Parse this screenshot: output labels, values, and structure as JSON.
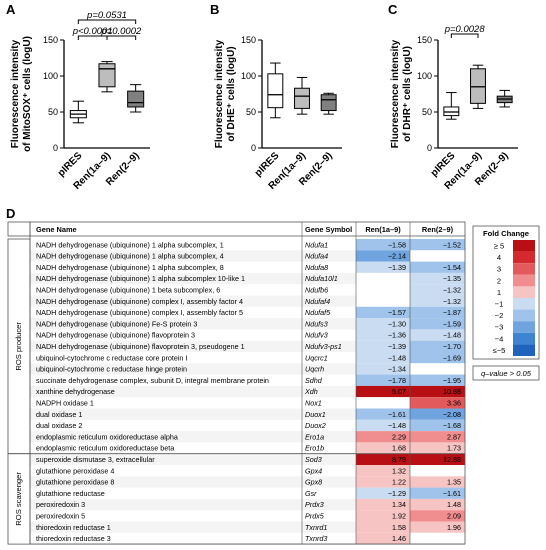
{
  "chart_data": [
    {
      "type": "box",
      "panel": "A",
      "ylabel_lines": [
        "Fluorescence intensity",
        "of MitoSOX⁺ cells (logU)"
      ],
      "ylim": [
        0,
        150
      ],
      "yticks": [
        0,
        50,
        100,
        150
      ],
      "categories": [
        "pIRES",
        "Ren(1a–9)",
        "Ren(2–9)"
      ],
      "boxes": [
        {
          "fill": "#ffffff",
          "whisker_low": 35,
          "q1": 42,
          "median": 47,
          "q3": 52,
          "whisker_high": 65
        },
        {
          "fill": "#bdbdbd",
          "whisker_low": 78,
          "q1": 85,
          "median": 110,
          "q3": 117,
          "whisker_high": 120
        },
        {
          "fill": "#808080",
          "whisker_low": 50,
          "q1": 57,
          "median": 63,
          "q3": 79,
          "whisker_high": 88
        }
      ],
      "annotations": [
        {
          "text": "p=0.0531",
          "from": 0,
          "to": 2
        },
        {
          "text": "p<0.0001",
          "from": 0,
          "to": 1
        },
        {
          "text": "p=0.0002",
          "from": 1,
          "to": 2
        }
      ]
    },
    {
      "type": "box",
      "panel": "B",
      "ylabel_lines": [
        "Fluorescence intensity",
        "of DHE⁺ cells (logU)"
      ],
      "ylim": [
        0,
        150
      ],
      "yticks": [
        0,
        50,
        100,
        150
      ],
      "categories": [
        "pIRES",
        "Ren(1a–9)",
        "Ren(2–9)"
      ],
      "boxes": [
        {
          "fill": "#ffffff",
          "whisker_low": 42,
          "q1": 56,
          "median": 74,
          "q3": 103,
          "whisker_high": 118
        },
        {
          "fill": "#bdbdbd",
          "whisker_low": 47,
          "q1": 55,
          "median": 72,
          "q3": 83,
          "whisker_high": 98
        },
        {
          "fill": "#808080",
          "whisker_low": 47,
          "q1": 52,
          "median": 67,
          "q3": 74,
          "whisker_high": 76
        }
      ],
      "annotations": []
    },
    {
      "type": "box",
      "panel": "C",
      "ylabel_lines": [
        "Fluorescence intensity",
        "of DHR⁺ cells (logU)"
      ],
      "ylim": [
        0,
        150
      ],
      "yticks": [
        0,
        50,
        100,
        150
      ],
      "categories": [
        "pIRES",
        "Ren(1a–9)",
        "Ren(2–9)"
      ],
      "boxes": [
        {
          "fill": "#ffffff",
          "whisker_low": 40,
          "q1": 45,
          "median": 50,
          "q3": 57,
          "whisker_high": 77
        },
        {
          "fill": "#bdbdbd",
          "whisker_low": 55,
          "q1": 62,
          "median": 85,
          "q3": 110,
          "whisker_high": 115
        },
        {
          "fill": "#808080",
          "whisker_low": 57,
          "q1": 63,
          "median": 68,
          "q3": 72,
          "whisker_high": 80
        }
      ],
      "annotations": [
        {
          "text": "p=0.0028",
          "from": 0,
          "to": 1
        }
      ]
    },
    {
      "type": "heatmap",
      "panel": "D",
      "columns": [
        "Gene Name",
        "Gene Symbol",
        "Ren(1a–9)",
        "Ren(2–9)"
      ],
      "groups": [
        {
          "label": "ROS producer",
          "start": 0,
          "end": 18
        },
        {
          "label": "ROS scavenger",
          "start": 19,
          "end": 26
        }
      ],
      "rows": [
        {
          "name": "NADH dehydrogenase (ubiquinone) 1 alpha subcomplex, 1",
          "symbol": "Ndufa1",
          "v1": -1.58,
          "v2": -1.52
        },
        {
          "name": "NADH dehydrogenase (ubiquinone) 1 alpha subcomplex, 4",
          "symbol": "Ndufa4",
          "v1": -2.14,
          "v2": null
        },
        {
          "name": "NADH dehydrogenase (ubiquinone) 1 alpha subcomplex, 8",
          "symbol": "Ndufa8",
          "v1": -1.39,
          "v2": -1.54
        },
        {
          "name": "NADH dehydrogenase (ubiquinone) 1 alpha subcomplex 10-like 1",
          "symbol": "Ndufa10l1",
          "v1": null,
          "v2": -1.35
        },
        {
          "name": "NADH dehydrogenase (ubiquinone) 1 beta subcomplex, 6",
          "symbol": "Ndufb6",
          "v1": null,
          "v2": -1.32
        },
        {
          "name": "NADH dehydrogenase (ubiquinone) complex I, assembly factor 4",
          "symbol": "Ndufaf4",
          "v1": null,
          "v2": -1.32
        },
        {
          "name": "NADH dehydrogenase (ubiquinone) complex I, assembly factor 5",
          "symbol": "Ndufaf5",
          "v1": -1.57,
          "v2": -1.87
        },
        {
          "name": "NADH dehydrogenase (ubiquinone) Fe-S protein 3",
          "symbol": "Ndufs3",
          "v1": -1.3,
          "v2": -1.59
        },
        {
          "name": "NADH dehydrogenase (ubiquinone) flavoprotein 3",
          "symbol": "Ndufv3",
          "v1": -1.36,
          "v2": -1.48
        },
        {
          "name": "NADH dehydrogenase (ubiquinone) flavoprotein 3, pseudogene 1",
          "symbol": "Ndufv3-ps1",
          "v1": -1.39,
          "v2": -1.7
        },
        {
          "name": "ubiquinol-cytochrome c reductase core protein I",
          "symbol": "Uqcrc1",
          "v1": -1.48,
          "v2": -1.69
        },
        {
          "name": "ubiquinol-cytochrome c reductase hinge protein",
          "symbol": "Uqcrh",
          "v1": -1.34,
          "v2": null
        },
        {
          "name": "succinate dehydrogenase complex, subunit D, integral membrane protein",
          "symbol": "Sdhd",
          "v1": -1.78,
          "v2": -1.95
        },
        {
          "name": "xanthine dehydrogenase",
          "symbol": "Xdh",
          "v1": 5.07,
          "v2": 10.88
        },
        {
          "name": "NADPH oxidase 1",
          "symbol": "Nox1",
          "v1": null,
          "v2": 3.36
        },
        {
          "name": "dual oxidase 1",
          "symbol": "Duox1",
          "v1": -1.61,
          "v2": -2.08
        },
        {
          "name": "dual oxidase 2",
          "symbol": "Duox2",
          "v1": -1.48,
          "v2": -1.68
        },
        {
          "name": "endoplasmic reticulum oxidoreductase alpha",
          "symbol": "Ero1a",
          "v1": 2.29,
          "v2": 2.87
        },
        {
          "name": "endoplasmic reticulum oxidoreductase beta",
          "symbol": "Ero1b",
          "v1": 1.68,
          "v2": 1.73
        },
        {
          "name": "superoxide dismutase 3, extracellular",
          "symbol": "Sod3",
          "v1": 8.79,
          "v2": 12.88
        },
        {
          "name": "glutathione peroxidase 4",
          "symbol": "Gpx4",
          "v1": 1.32,
          "v2": null
        },
        {
          "name": "glutathione peroxidase 8",
          "symbol": "Gpx8",
          "v1": 1.22,
          "v2": 1.35
        },
        {
          "name": "glutathione reductase",
          "symbol": "Gsr",
          "v1": -1.29,
          "v2": -1.61
        },
        {
          "name": "peroxiredoxin 3",
          "symbol": "Prdx3",
          "v1": 1.34,
          "v2": 1.48
        },
        {
          "name": "peroxiredoxin 5",
          "symbol": "Prdx5",
          "v1": 1.92,
          "v2": 2.09
        },
        {
          "name": "thioredoxin reductase 1",
          "symbol": "Txnrd1",
          "v1": 1.58,
          "v2": 1.96
        },
        {
          "name": "thioredoxin reductase 3",
          "symbol": "Txnrd3",
          "v1": 1.46,
          "v2": null
        }
      ],
      "legend": {
        "title": "Fold Change",
        "items": [
          {
            "label": "≥ 5",
            "color": "#b80f14"
          },
          {
            "label": "4",
            "color": "#d42a2f"
          },
          {
            "label": "3",
            "color": "#e35a5d"
          },
          {
            "label": "2",
            "color": "#f08e8f"
          },
          {
            "label": "1",
            "color": "#f7c4c4"
          },
          {
            "label": "−1",
            "color": "#c9dcf1"
          },
          {
            "label": "−2",
            "color": "#9fc3ea"
          },
          {
            "label": "−3",
            "color": "#6fa4de"
          },
          {
            "label": "−4",
            "color": "#3f84d0"
          },
          {
            "label": "≤−5",
            "color": "#1f63bd"
          }
        ],
        "note": "q–value > 0.05"
      }
    }
  ]
}
